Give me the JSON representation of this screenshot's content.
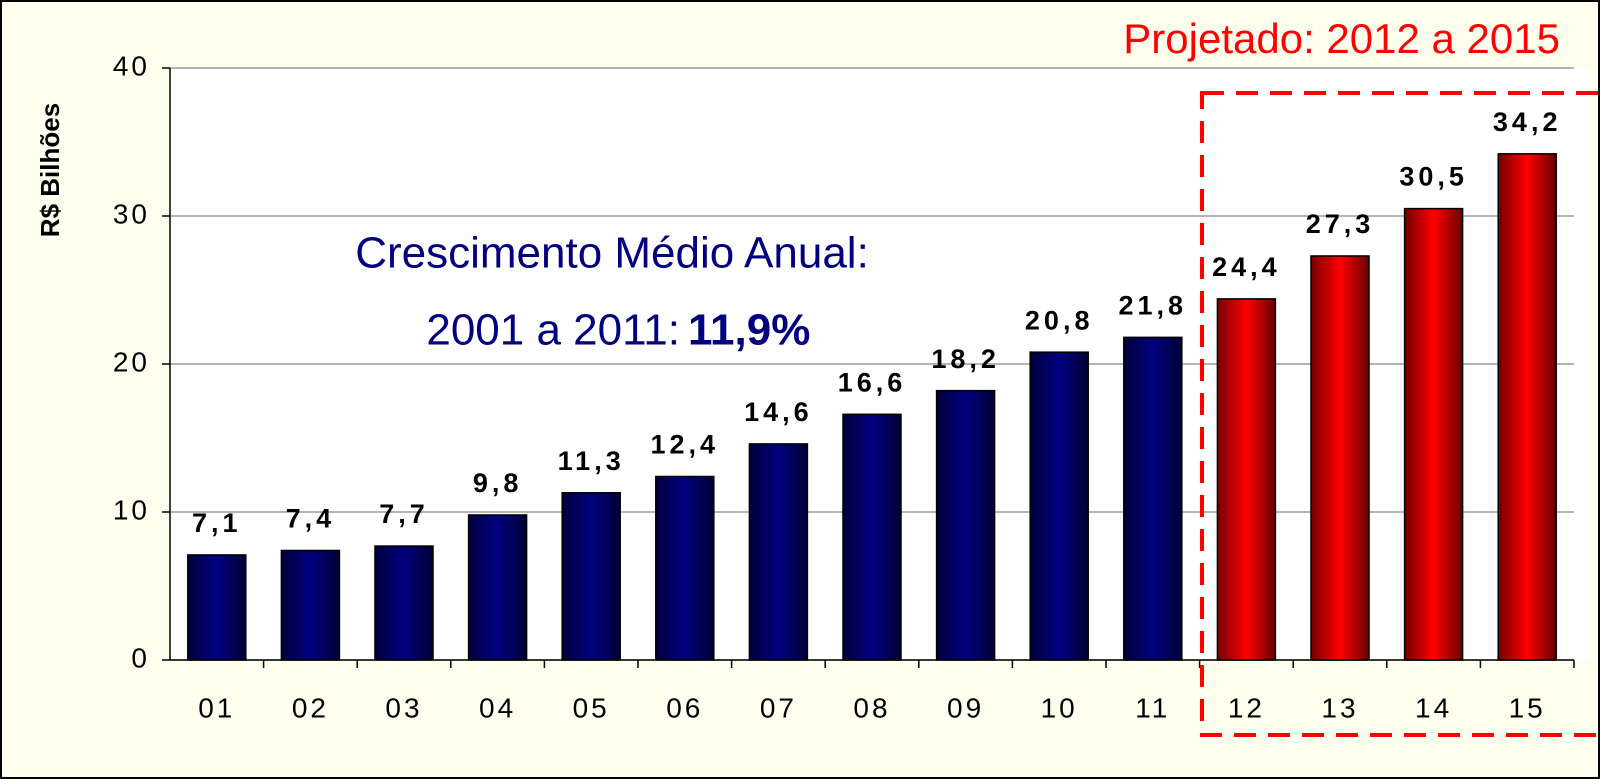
{
  "chart_data": {
    "type": "bar",
    "y_label": "R$ Bilhões",
    "categories": [
      "01",
      "02",
      "03",
      "04",
      "05",
      "06",
      "07",
      "08",
      "09",
      "10",
      "11",
      "12",
      "13",
      "14",
      "15"
    ],
    "values": [
      7.1,
      7.4,
      7.7,
      9.8,
      11.3,
      12.4,
      14.6,
      16.6,
      18.2,
      20.8,
      21.8,
      24.4,
      27.3,
      30.5,
      34.2
    ],
    "value_labels": [
      "7,1",
      "7,4",
      "7,7",
      "9,8",
      "11,3",
      "12,4",
      "14,6",
      "16,6",
      "18,2",
      "20,8",
      "21,8",
      "24,4",
      "27,3",
      "30,5",
      "34,2"
    ],
    "colors": [
      "#000080",
      "#000080",
      "#000080",
      "#000080",
      "#000080",
      "#000080",
      "#000080",
      "#000080",
      "#000080",
      "#000080",
      "#000080",
      "#ff0000",
      "#ff0000",
      "#ff0000",
      "#ff0000"
    ],
    "ylim": [
      0,
      40
    ],
    "yticks": [
      0,
      10,
      20,
      30,
      40
    ],
    "grid": true,
    "annotations": [
      "Crescimento Médio Anual:",
      "2001 a 2011:",
      "11,9%",
      "Projetado: 2012 a 2015"
    ]
  }
}
